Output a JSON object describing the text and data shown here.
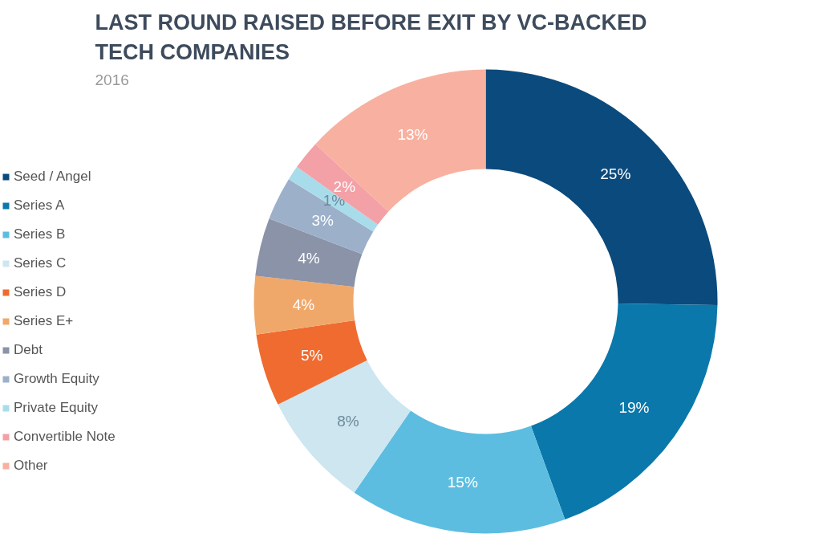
{
  "chart_data": {
    "type": "donut",
    "title": "LAST ROUND RAISED BEFORE EXIT BY VC-BACKED TECH COMPANIES",
    "subtitle": "2016",
    "categories": [
      "Seed / Angel",
      "Series A",
      "Series B",
      "Series C",
      "Series D",
      "Series E+",
      "Debt",
      "Growth Equity",
      "Private Equity",
      "Convertible Note",
      "Other"
    ],
    "values": [
      25,
      19,
      15,
      8,
      5,
      4,
      4,
      3,
      1,
      2,
      13
    ],
    "value_labels": [
      "25%",
      "19%",
      "15%",
      "8%",
      "5%",
      "4%",
      "4%",
      "3%",
      "1%",
      "2%",
      "13%"
    ],
    "colors": [
      "#0b4a7c",
      "#0a78aa",
      "#5cbde0",
      "#cde6f0",
      "#ef6b2f",
      "#f0a86a",
      "#8b93a8",
      "#9cb0c9",
      "#a9dcea",
      "#f3a0a6",
      "#f8b1a0"
    ],
    "legend": "left"
  }
}
